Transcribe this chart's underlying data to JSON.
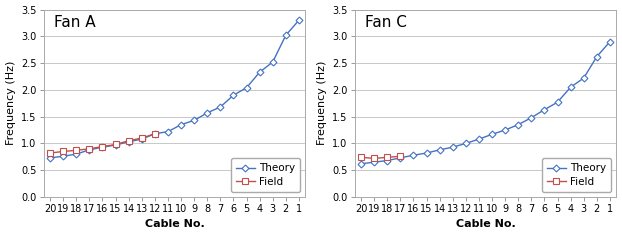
{
  "fan_a": {
    "title": "Fan A",
    "theory_cables": [
      20,
      19,
      18,
      17,
      16,
      15,
      14,
      13,
      12,
      11,
      10,
      9,
      8,
      7,
      6,
      5,
      4,
      3,
      2,
      1
    ],
    "theory_freq": [
      0.73,
      0.76,
      0.8,
      0.88,
      0.93,
      0.97,
      1.03,
      1.08,
      1.18,
      1.22,
      1.35,
      1.43,
      1.57,
      1.68,
      1.9,
      2.04,
      2.33,
      2.52,
      3.02,
      3.3
    ],
    "field_cables": [
      20,
      19,
      18,
      17,
      16,
      15,
      14,
      13,
      12
    ],
    "field_freq": [
      0.82,
      0.85,
      0.87,
      0.9,
      0.94,
      0.98,
      1.05,
      1.1,
      1.18
    ]
  },
  "fan_c": {
    "title": "Fan C",
    "theory_cables": [
      20,
      19,
      18,
      17,
      16,
      15,
      14,
      13,
      12,
      11,
      10,
      9,
      8,
      7,
      6,
      5,
      4,
      3,
      2,
      1
    ],
    "theory_freq": [
      0.62,
      0.65,
      0.68,
      0.73,
      0.78,
      0.82,
      0.88,
      0.93,
      1.0,
      1.08,
      1.17,
      1.25,
      1.35,
      1.48,
      1.63,
      1.77,
      2.05,
      2.22,
      2.62,
      2.9
    ],
    "field_cables": [
      20,
      19,
      18,
      17
    ],
    "field_freq": [
      0.74,
      0.72,
      0.74,
      0.76
    ]
  },
  "theory_color": "#4472C4",
  "field_color": "#C0504D",
  "theory_label": "Theory",
  "field_label": "Field",
  "xlabel": "Cable No.",
  "ylabel": "Frequency (Hz)",
  "ylim": [
    0.0,
    3.5
  ],
  "yticks": [
    0.0,
    0.5,
    1.0,
    1.5,
    2.0,
    2.5,
    3.0,
    3.5
  ],
  "xticks": [
    20,
    19,
    18,
    17,
    16,
    15,
    14,
    13,
    12,
    11,
    10,
    9,
    8,
    7,
    6,
    5,
    4,
    3,
    2,
    1
  ],
  "bg_color": "#FFFFFF",
  "grid_color": "#C8C8C8",
  "title_fontsize": 11,
  "label_fontsize": 8,
  "tick_fontsize": 7,
  "legend_fontsize": 7.5
}
